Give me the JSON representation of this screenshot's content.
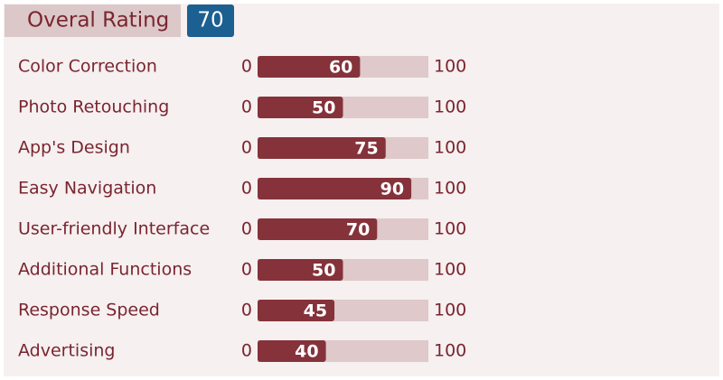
{
  "chart_data": {
    "type": "bar",
    "title": "Overal Rating",
    "overall": 70,
    "categories": [
      "Color Correction",
      "Photo Retouching",
      "App's Design",
      "Easy Navigation",
      "User-friendly Interface",
      "Additional Functions",
      "Response Speed",
      "Advertising"
    ],
    "values": [
      60,
      50,
      75,
      90,
      70,
      50,
      45,
      40
    ],
    "xlim": [
      0,
      100
    ],
    "color": "#85323a",
    "track_color": "#dfc9ca",
    "badge_color": "#1c5f91"
  }
}
